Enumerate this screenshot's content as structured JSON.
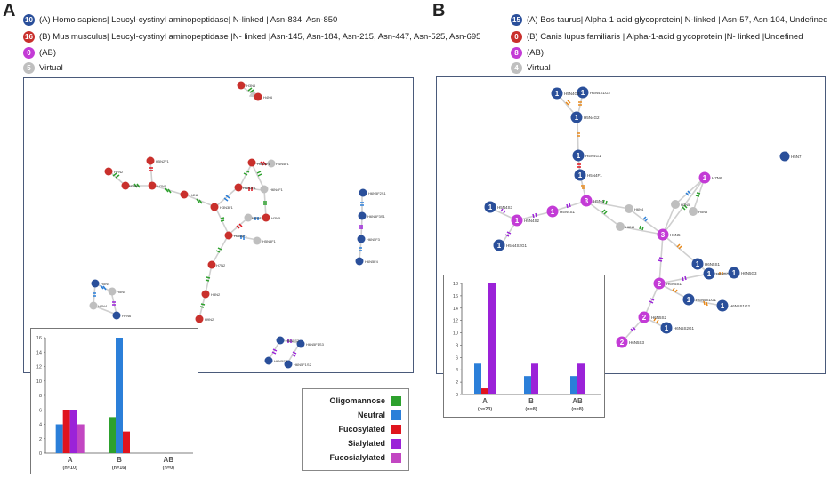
{
  "panelA": {
    "letter": "A",
    "legend": [
      {
        "badge": "10",
        "color": "#2a4f9a",
        "text": "(A) Homo sapiens| Leucyl-cystinyl aminopeptidase| N-linked | Asn-834, Asn-850"
      },
      {
        "badge": "16",
        "color": "#c9302c",
        "text": "(B) Mus musculus| Leucyl-cystinyl aminopeptidase |N- linked |Asn-145, Asn-184, Asn-215, Asn-447, Asn-525, Asn-695"
      },
      {
        "badge": "0",
        "color": "#c33bd6",
        "text": "(AB)"
      },
      {
        "badge": "5",
        "color": "#bfbfbf",
        "text": "Virtual"
      }
    ],
    "node_labels": [
      "H3N6",
      "H4N6",
      "H5N2F1",
      "H7N2",
      "H3N6",
      "H2N2",
      "H4N2",
      "H3N3F1",
      "H5N4F1",
      "H4N4F1",
      "H6N4F1",
      "H3N5",
      "H4N3F1",
      "H5N5F1",
      "H3N4F1",
      "H6N4",
      "H7N2",
      "H8N2",
      "H9N2",
      "H6N5F2S1",
      "H6N5F3S1",
      "H6N5F3",
      "H6N5F4",
      "H5N4",
      "H5N5",
      "H4N4",
      "H7N6",
      "H6N5S2",
      "H6N5F1S3",
      "H6N5S3",
      "H6N5F1S2"
    ],
    "chart": {
      "chart_data": {
        "type": "bar",
        "categories": [
          "A",
          "B",
          "AB"
        ],
        "category_counts": [
          "(n=10)",
          "(n=16)",
          "(n=0)"
        ],
        "series": [
          {
            "name": "Oligomannose",
            "color": "#2da12d",
            "values": [
              0,
              5,
              0
            ]
          },
          {
            "name": "Neutral",
            "color": "#2b7fd9",
            "values": [
              4,
              16,
              0
            ]
          },
          {
            "name": "Fucosylated",
            "color": "#e0141e",
            "values": [
              6,
              3,
              0
            ]
          },
          {
            "name": "Sialylated",
            "color": "#9b22d8",
            "values": [
              6,
              0,
              0
            ]
          },
          {
            "name": "Fucosialylated",
            "color": "#c246c2",
            "values": [
              4,
              0,
              0
            ]
          }
        ],
        "ylim": [
          0,
          16
        ],
        "yticks": [
          "0",
          "2",
          "4",
          "6",
          "8",
          "10",
          "12",
          "14",
          "16"
        ]
      }
    }
  },
  "key": {
    "items": [
      {
        "label": "Oligomannose",
        "color": "#2da12d"
      },
      {
        "label": "Neutral",
        "color": "#2b7fd9"
      },
      {
        "label": "Fucosylated",
        "color": "#e0141e"
      },
      {
        "label": "Sialylated",
        "color": "#9b22d8"
      },
      {
        "label": "Fucosialylated",
        "color": "#c246c2"
      }
    ]
  },
  "panelB": {
    "letter": "B",
    "legend": [
      {
        "badge": "15",
        "color": "#2a4f9a",
        "text": "(A) Bos taurus| Alpha-1-acid glycoprotein| N-linked | Asn-57, Asn-104, Undefined"
      },
      {
        "badge": "0",
        "color": "#c9302c",
        "text": "(B) Canis lupus familiaris | Alpha-1-acid glycoprotein |N- linked |Undefined"
      },
      {
        "badge": "8",
        "color": "#c33bd6",
        "text": "(AB)"
      },
      {
        "badge": "4",
        "color": "#bfbfbf",
        "text": "Virtual"
      }
    ],
    "nodes": [
      {
        "n": "1",
        "label": "H5N4S1G2",
        "color": "#2a4f9a"
      },
      {
        "n": "1",
        "label": "H5N4G3",
        "color": "#2a4f9a"
      },
      {
        "n": "1",
        "label": "H5N4G2",
        "color": "#2a4f9a"
      },
      {
        "n": "1",
        "label": "H5N4G1",
        "color": "#2a4f9a"
      },
      {
        "n": "1",
        "label": "H5N4F1",
        "color": "#2a4f9a"
      },
      {
        "n": "1",
        "label": "H7N6",
        "color": "#c33bd6"
      },
      {
        "n": "1",
        "label": "H5N4S3",
        "color": "#2a4f9a"
      },
      {
        "n": "1",
        "label": "H5N4S1",
        "color": "#c33bd6"
      },
      {
        "n": "3",
        "label": "H5N4",
        "color": "#c33bd6"
      },
      {
        "n": "1",
        "label": "H5N4S2",
        "color": "#c33bd6"
      },
      {
        "n": "1",
        "label": "H5N4S2G1",
        "color": "#2a4f9a"
      },
      {
        "n": "3",
        "label": "H6N5",
        "color": "#c33bd6"
      },
      {
        "n": "1",
        "label": "H6N5S1",
        "color": "#2a4f9a"
      },
      {
        "n": "1",
        "label": "H6N5G2",
        "color": "#2a4f9a"
      },
      {
        "n": "1",
        "label": "H6N5G3",
        "color": "#2a4f9a"
      },
      {
        "n": "2",
        "label": "H6N5S1",
        "color": "#c33bd6"
      },
      {
        "n": "1",
        "label": "H6N5S1G1",
        "color": "#2a4f9a"
      },
      {
        "n": "1",
        "label": "H6N5S1G2",
        "color": "#2a4f9a"
      },
      {
        "n": "2",
        "label": "H6N5S2",
        "color": "#c33bd6"
      },
      {
        "n": "1",
        "label": "H6N5S2G1",
        "color": "#2a4f9a"
      },
      {
        "n": "2",
        "label": "H6N5S3",
        "color": "#c33bd6"
      },
      {
        "n": "",
        "label": "H5N7",
        "color": "#2a4f9a"
      }
    ],
    "virtual_labels": [
      "H6N4",
      "H6N5",
      "H7N5",
      "H5N5"
    ],
    "chart": {
      "chart_data": {
        "type": "bar",
        "categories": [
          "A",
          "B",
          "AB"
        ],
        "category_counts": [
          "(n=23)",
          "(n=8)",
          "(n=8)"
        ],
        "series": [
          {
            "name": "Neutral",
            "color": "#2b7fd9",
            "values": [
              5,
              3,
              3
            ]
          },
          {
            "name": "Fucosylated",
            "color": "#e0141e",
            "values": [
              1,
              0,
              0
            ]
          },
          {
            "name": "Sialylated",
            "color": "#9b22d8",
            "values": [
              18,
              5,
              5
            ]
          }
        ],
        "ylim": [
          0,
          18
        ],
        "yticks": [
          "0",
          "2",
          "4",
          "6",
          "8",
          "10",
          "12",
          "14",
          "16",
          "18"
        ]
      }
    }
  }
}
